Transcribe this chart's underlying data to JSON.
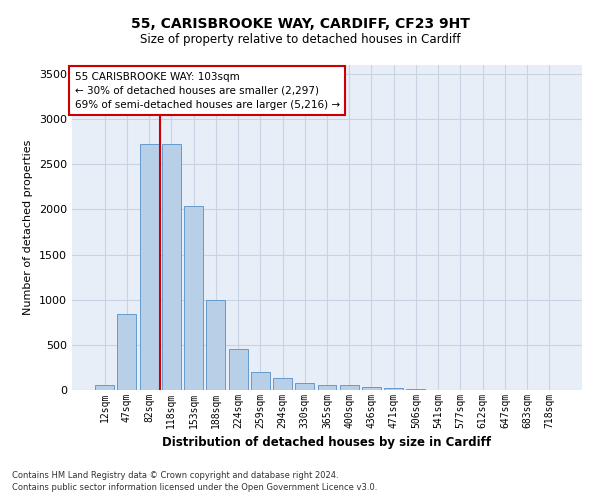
{
  "title1": "55, CARISBROOKE WAY, CARDIFF, CF23 9HT",
  "title2": "Size of property relative to detached houses in Cardiff",
  "xlabel": "Distribution of detached houses by size in Cardiff",
  "ylabel": "Number of detached properties",
  "categories": [
    "12sqm",
    "47sqm",
    "82sqm",
    "118sqm",
    "153sqm",
    "188sqm",
    "224sqm",
    "259sqm",
    "294sqm",
    "330sqm",
    "365sqm",
    "400sqm",
    "436sqm",
    "471sqm",
    "506sqm",
    "541sqm",
    "577sqm",
    "612sqm",
    "647sqm",
    "683sqm",
    "718sqm"
  ],
  "values": [
    60,
    840,
    2720,
    2720,
    2040,
    1000,
    450,
    200,
    130,
    75,
    55,
    55,
    35,
    20,
    10,
    5,
    3,
    2,
    1,
    1,
    1
  ],
  "bar_color": "#b8cfe8",
  "bar_edge_color": "#6699cc",
  "grid_color": "#c8d4e4",
  "background_color": "#e8eef8",
  "vline_color": "#cc0000",
  "annotation_text": "55 CARISBROOKE WAY: 103sqm\n← 30% of detached houses are smaller (2,297)\n69% of semi-detached houses are larger (5,216) →",
  "annotation_box_color": "#ffffff",
  "annotation_border_color": "#cc0000",
  "ylim": [
    0,
    3600
  ],
  "yticks": [
    0,
    500,
    1000,
    1500,
    2000,
    2500,
    3000,
    3500
  ],
  "footer1": "Contains HM Land Registry data © Crown copyright and database right 2024.",
  "footer2": "Contains public sector information licensed under the Open Government Licence v3.0."
}
